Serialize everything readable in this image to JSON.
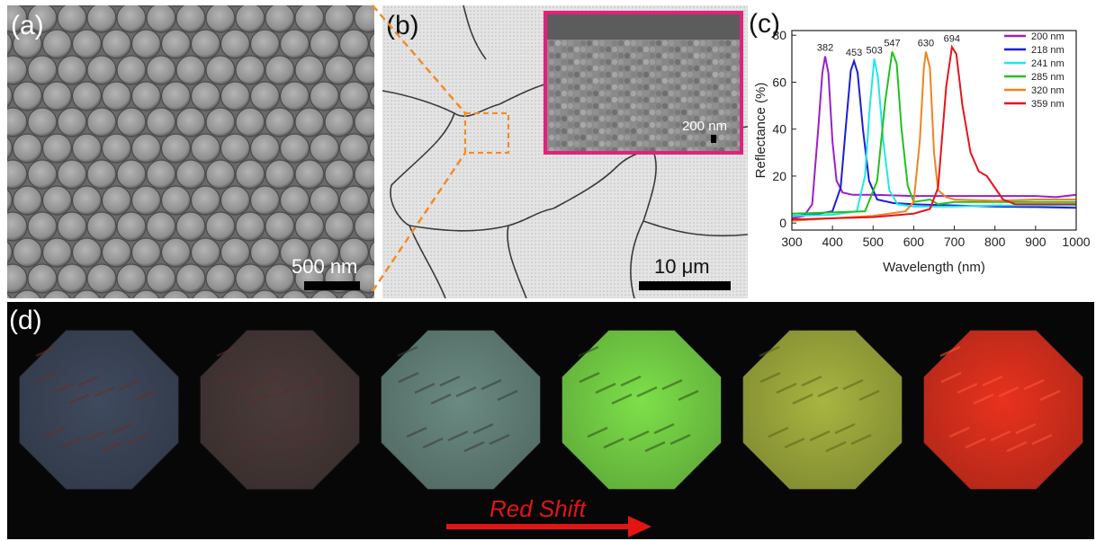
{
  "panels": {
    "a": {
      "label": "(a)",
      "scale": "500 nm"
    },
    "b": {
      "label": "(b)",
      "scale": "10 μm",
      "inset_scale": "200 nm"
    },
    "c": {
      "label": "(c)"
    },
    "d": {
      "label": "(d)",
      "arrow_text": "Red Shift"
    }
  },
  "colors": {
    "inset_border": "#e0227c",
    "zoom_lines": "#f08c2c",
    "arrow": "#e41414"
  },
  "samples_d": [
    {
      "tint": "#3f4a5e",
      "spot": "#6a2d22"
    },
    {
      "tint": "#4a3b3a",
      "spot": "#5a2e2a"
    },
    {
      "tint": "#6a8a82",
      "spot": "#3a3a30"
    },
    {
      "tint": "#7de04a",
      "spot": "#2e4a14"
    },
    {
      "tint": "#a8b540",
      "spot": "#5a6218"
    },
    {
      "tint": "#e8321e",
      "spot": "#ff5a3a"
    }
  ],
  "chart_data": {
    "type": "line",
    "title": "",
    "xlabel": "Wavelength (nm)",
    "ylabel": "Reflectance (%)",
    "xlim": [
      300,
      1000
    ],
    "ylim": [
      -3,
      82
    ],
    "xticks": [
      300,
      400,
      500,
      600,
      700,
      800,
      900,
      1000
    ],
    "yticks": [
      0,
      20,
      40,
      60,
      80
    ],
    "legend_position": "top-right",
    "series": [
      {
        "name": "200 nm",
        "color": "#9b1fc9",
        "peak_label": "382",
        "points": [
          [
            300,
            2
          ],
          [
            330,
            3
          ],
          [
            350,
            8
          ],
          [
            365,
            40
          ],
          [
            375,
            64
          ],
          [
            382,
            71
          ],
          [
            390,
            64
          ],
          [
            400,
            35
          ],
          [
            410,
            18
          ],
          [
            425,
            13
          ],
          [
            450,
            12
          ],
          [
            500,
            12
          ],
          [
            600,
            11.5
          ],
          [
            700,
            11.5
          ],
          [
            800,
            11.5
          ],
          [
            900,
            11.5
          ],
          [
            950,
            11
          ],
          [
            1000,
            12
          ]
        ]
      },
      {
        "name": "218 nm",
        "color": "#1d1ed8",
        "peak_label": "453",
        "points": [
          [
            300,
            3
          ],
          [
            350,
            3.5
          ],
          [
            400,
            5
          ],
          [
            420,
            15
          ],
          [
            435,
            45
          ],
          [
            445,
            65
          ],
          [
            453,
            69
          ],
          [
            462,
            64
          ],
          [
            475,
            40
          ],
          [
            490,
            18
          ],
          [
            510,
            10
          ],
          [
            550,
            8.5
          ],
          [
            600,
            8
          ],
          [
            700,
            7.5
          ],
          [
            800,
            7
          ],
          [
            900,
            6.8
          ],
          [
            1000,
            6.5
          ]
        ]
      },
      {
        "name": "241 nm",
        "color": "#22e6e8",
        "peak_label": "503",
        "points": [
          [
            300,
            3
          ],
          [
            400,
            3.5
          ],
          [
            460,
            5
          ],
          [
            480,
            20
          ],
          [
            492,
            50
          ],
          [
            503,
            70
          ],
          [
            512,
            62
          ],
          [
            525,
            35
          ],
          [
            540,
            14
          ],
          [
            560,
            8
          ],
          [
            600,
            7
          ],
          [
            700,
            7
          ],
          [
            800,
            7.5
          ],
          [
            900,
            7.5
          ],
          [
            1000,
            7.5
          ]
        ]
      },
      {
        "name": "285 nm",
        "color": "#21c11f",
        "peak_label": "547",
        "points": [
          [
            300,
            4
          ],
          [
            400,
            4.5
          ],
          [
            480,
            5
          ],
          [
            510,
            18
          ],
          [
            530,
            52
          ],
          [
            547,
            73
          ],
          [
            558,
            68
          ],
          [
            570,
            40
          ],
          [
            585,
            16
          ],
          [
            600,
            9
          ],
          [
            640,
            10
          ],
          [
            660,
            8
          ],
          [
            700,
            9
          ],
          [
            800,
            9
          ],
          [
            900,
            9
          ],
          [
            1000,
            9
          ]
        ]
      },
      {
        "name": "320 nm",
        "color": "#f0841d",
        "peak_label": "630",
        "points": [
          [
            300,
            1
          ],
          [
            400,
            2
          ],
          [
            500,
            3
          ],
          [
            580,
            5
          ],
          [
            600,
            9
          ],
          [
            615,
            35
          ],
          [
            625,
            66
          ],
          [
            630,
            73
          ],
          [
            640,
            66
          ],
          [
            650,
            30
          ],
          [
            660,
            14
          ],
          [
            680,
            11
          ],
          [
            700,
            10
          ],
          [
            800,
            9.5
          ],
          [
            900,
            10
          ],
          [
            1000,
            10
          ]
        ]
      },
      {
        "name": "359 nm",
        "color": "#e8131b",
        "peak_label": "694",
        "points": [
          [
            300,
            1.5
          ],
          [
            400,
            2
          ],
          [
            500,
            2.5
          ],
          [
            600,
            4
          ],
          [
            640,
            6
          ],
          [
            660,
            15
          ],
          [
            680,
            58
          ],
          [
            694,
            75
          ],
          [
            705,
            72
          ],
          [
            720,
            50
          ],
          [
            740,
            30
          ],
          [
            760,
            22
          ],
          [
            780,
            20
          ],
          [
            800,
            15
          ],
          [
            820,
            10
          ],
          [
            850,
            8
          ],
          [
            900,
            8
          ],
          [
            1000,
            8
          ]
        ]
      }
    ]
  }
}
